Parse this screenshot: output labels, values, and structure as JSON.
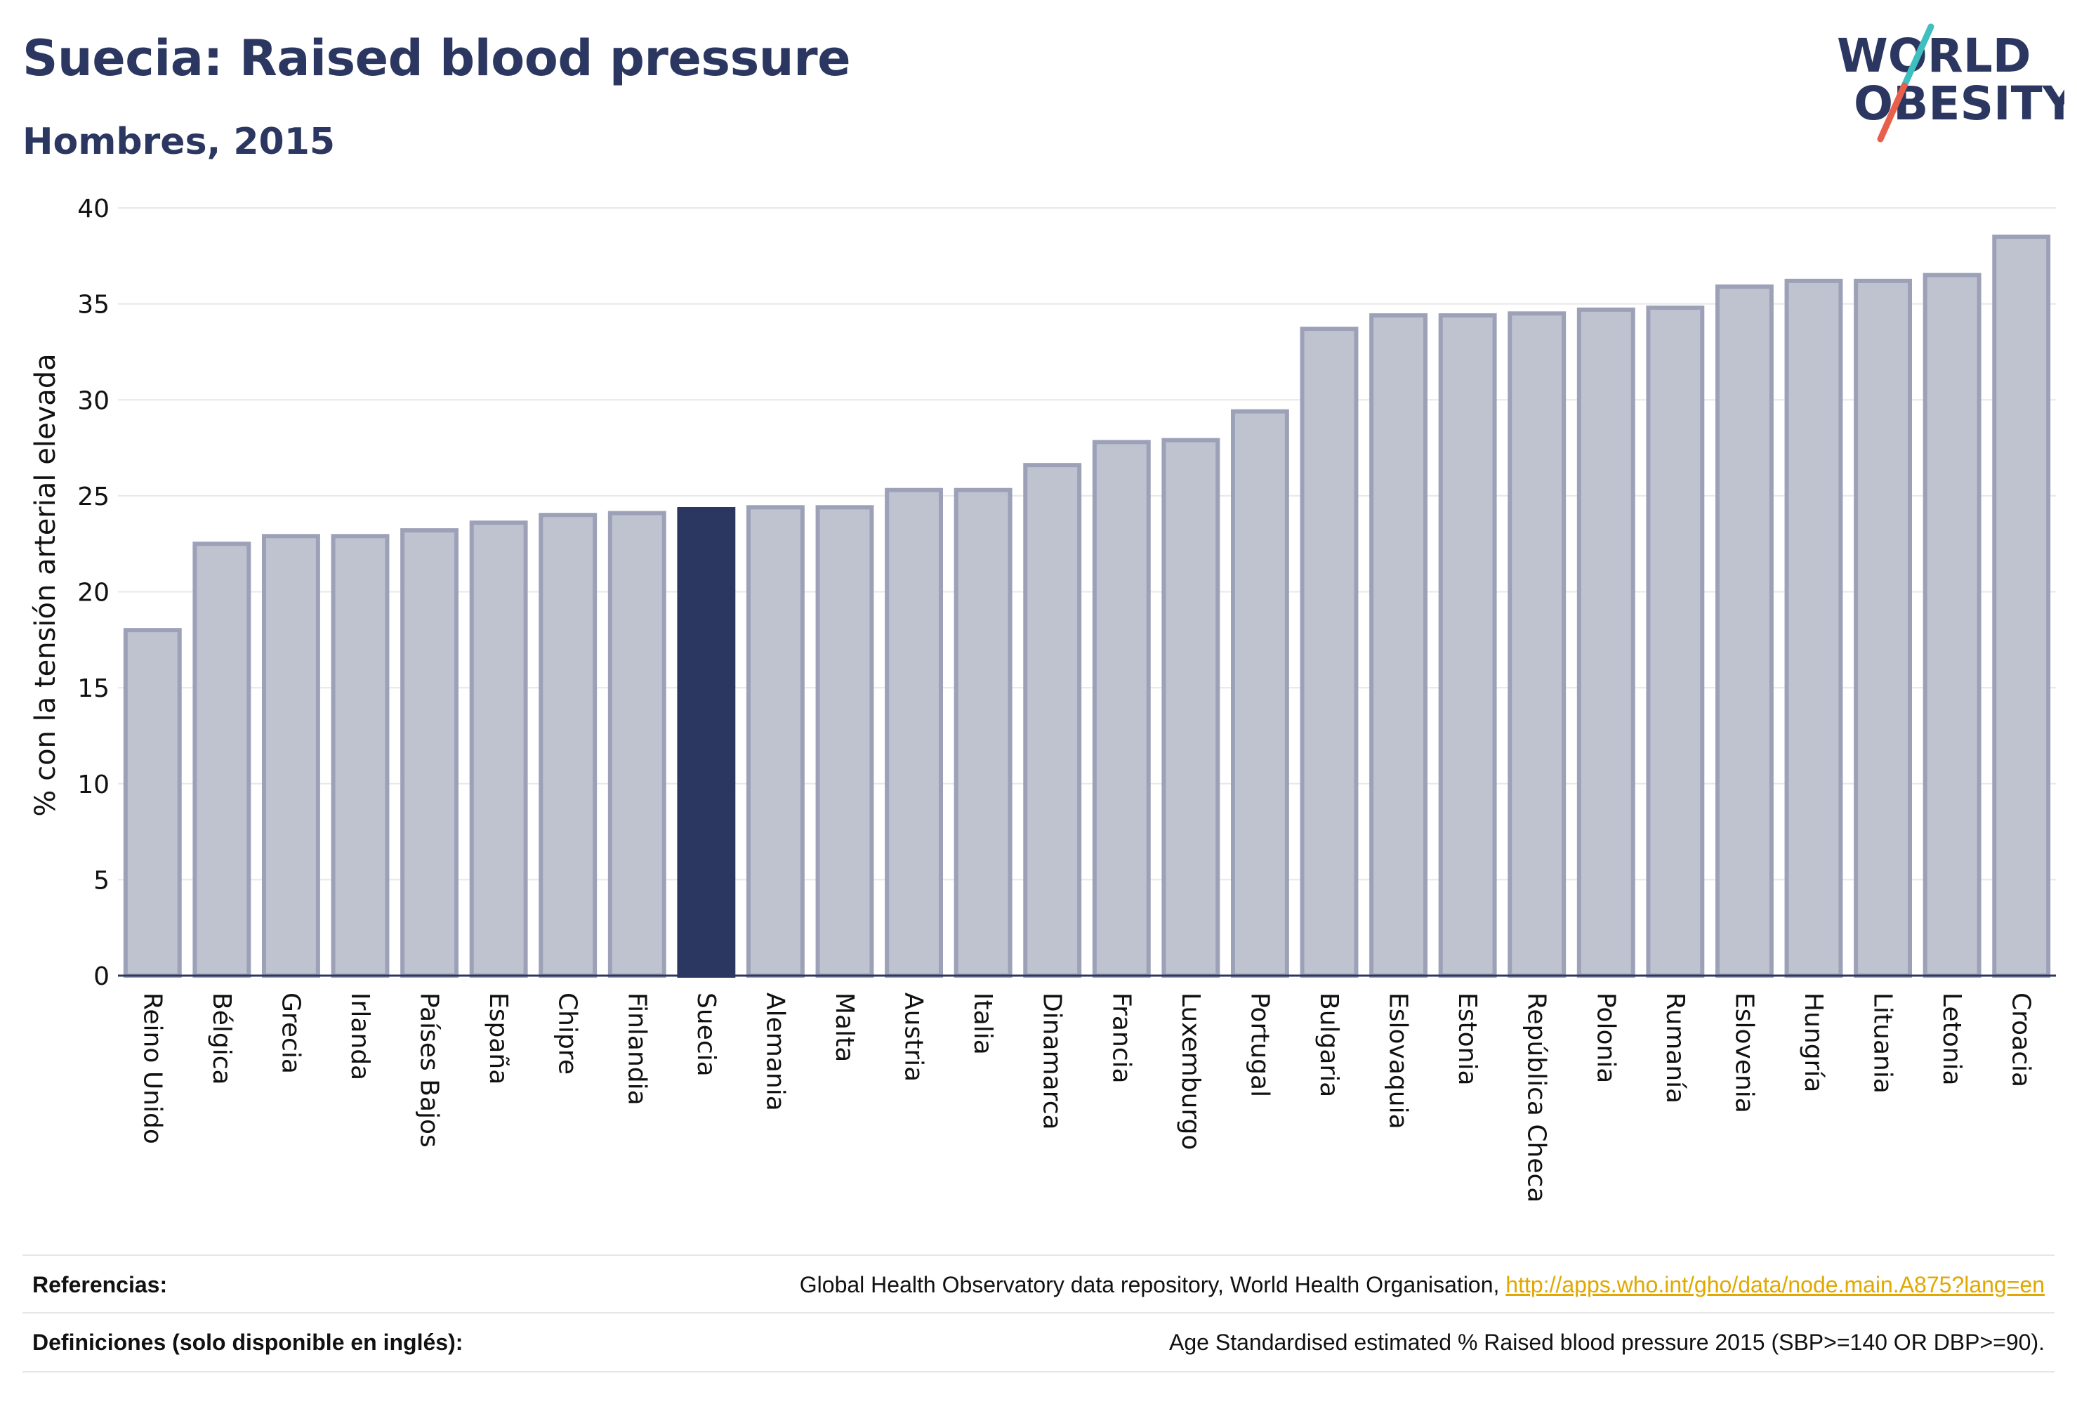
{
  "header": {
    "title": "Suecia: Raised blood pressure",
    "subtitle": "Hombres, 2015"
  },
  "logo": {
    "line1": "WORLD",
    "line2": "OBESITY",
    "colors": {
      "text": "#2b3760",
      "slash_teal": "#3fbfbf",
      "slash_red": "#e8604c"
    }
  },
  "colors": {
    "bar_default": "#bfc2cf",
    "bar_border": "#9ca1b8",
    "bar_highlight": "#2b3760",
    "grid": "#e8e8e8",
    "axis": "#2b3760",
    "text": "#111111"
  },
  "chart_data": {
    "type": "bar",
    "title": "Suecia: Raised blood pressure",
    "subtitle": "Hombres, 2015",
    "ylabel": "% con la tensión arterial elevada",
    "xlabel": "",
    "ylim": [
      0,
      40
    ],
    "yticks": [
      0,
      5,
      10,
      15,
      20,
      25,
      30,
      35,
      40
    ],
    "grid": true,
    "highlight": "Suecia",
    "categories": [
      "Reino Unido",
      "Bélgica",
      "Grecia",
      "Irlanda",
      "Países Bajos",
      "España",
      "Chipre",
      "Finlandia",
      "Suecia",
      "Alemania",
      "Malta",
      "Austria",
      "Italia",
      "Dinamarca",
      "Francia",
      "Luxemburgo",
      "Portugal",
      "Bulgaria",
      "Eslovaquia",
      "Estonia",
      "República Checa",
      "Polonia",
      "Rumanía",
      "Eslovenia",
      "Hungría",
      "Lituania",
      "Letonia",
      "Croacia"
    ],
    "values": [
      18.0,
      22.5,
      22.9,
      22.9,
      23.2,
      23.6,
      24.0,
      24.1,
      24.3,
      24.4,
      24.4,
      25.3,
      25.3,
      26.6,
      27.8,
      27.9,
      29.4,
      33.7,
      34.4,
      34.4,
      34.5,
      34.7,
      34.8,
      35.9,
      36.2,
      36.2,
      36.5,
      38.5
    ]
  },
  "footer": {
    "references_label": "Referencias:",
    "references_text": "Global Health Observatory data repository, World Health Organisation, ",
    "references_link": "http://apps.who.int/gho/data/node.main.A875?lang=en",
    "definitions_label": "Definiciones (solo disponible en inglés):",
    "definitions_text": "Age Standardised estimated % Raised blood pressure 2015 (SBP>=140 OR DBP>=90)."
  }
}
